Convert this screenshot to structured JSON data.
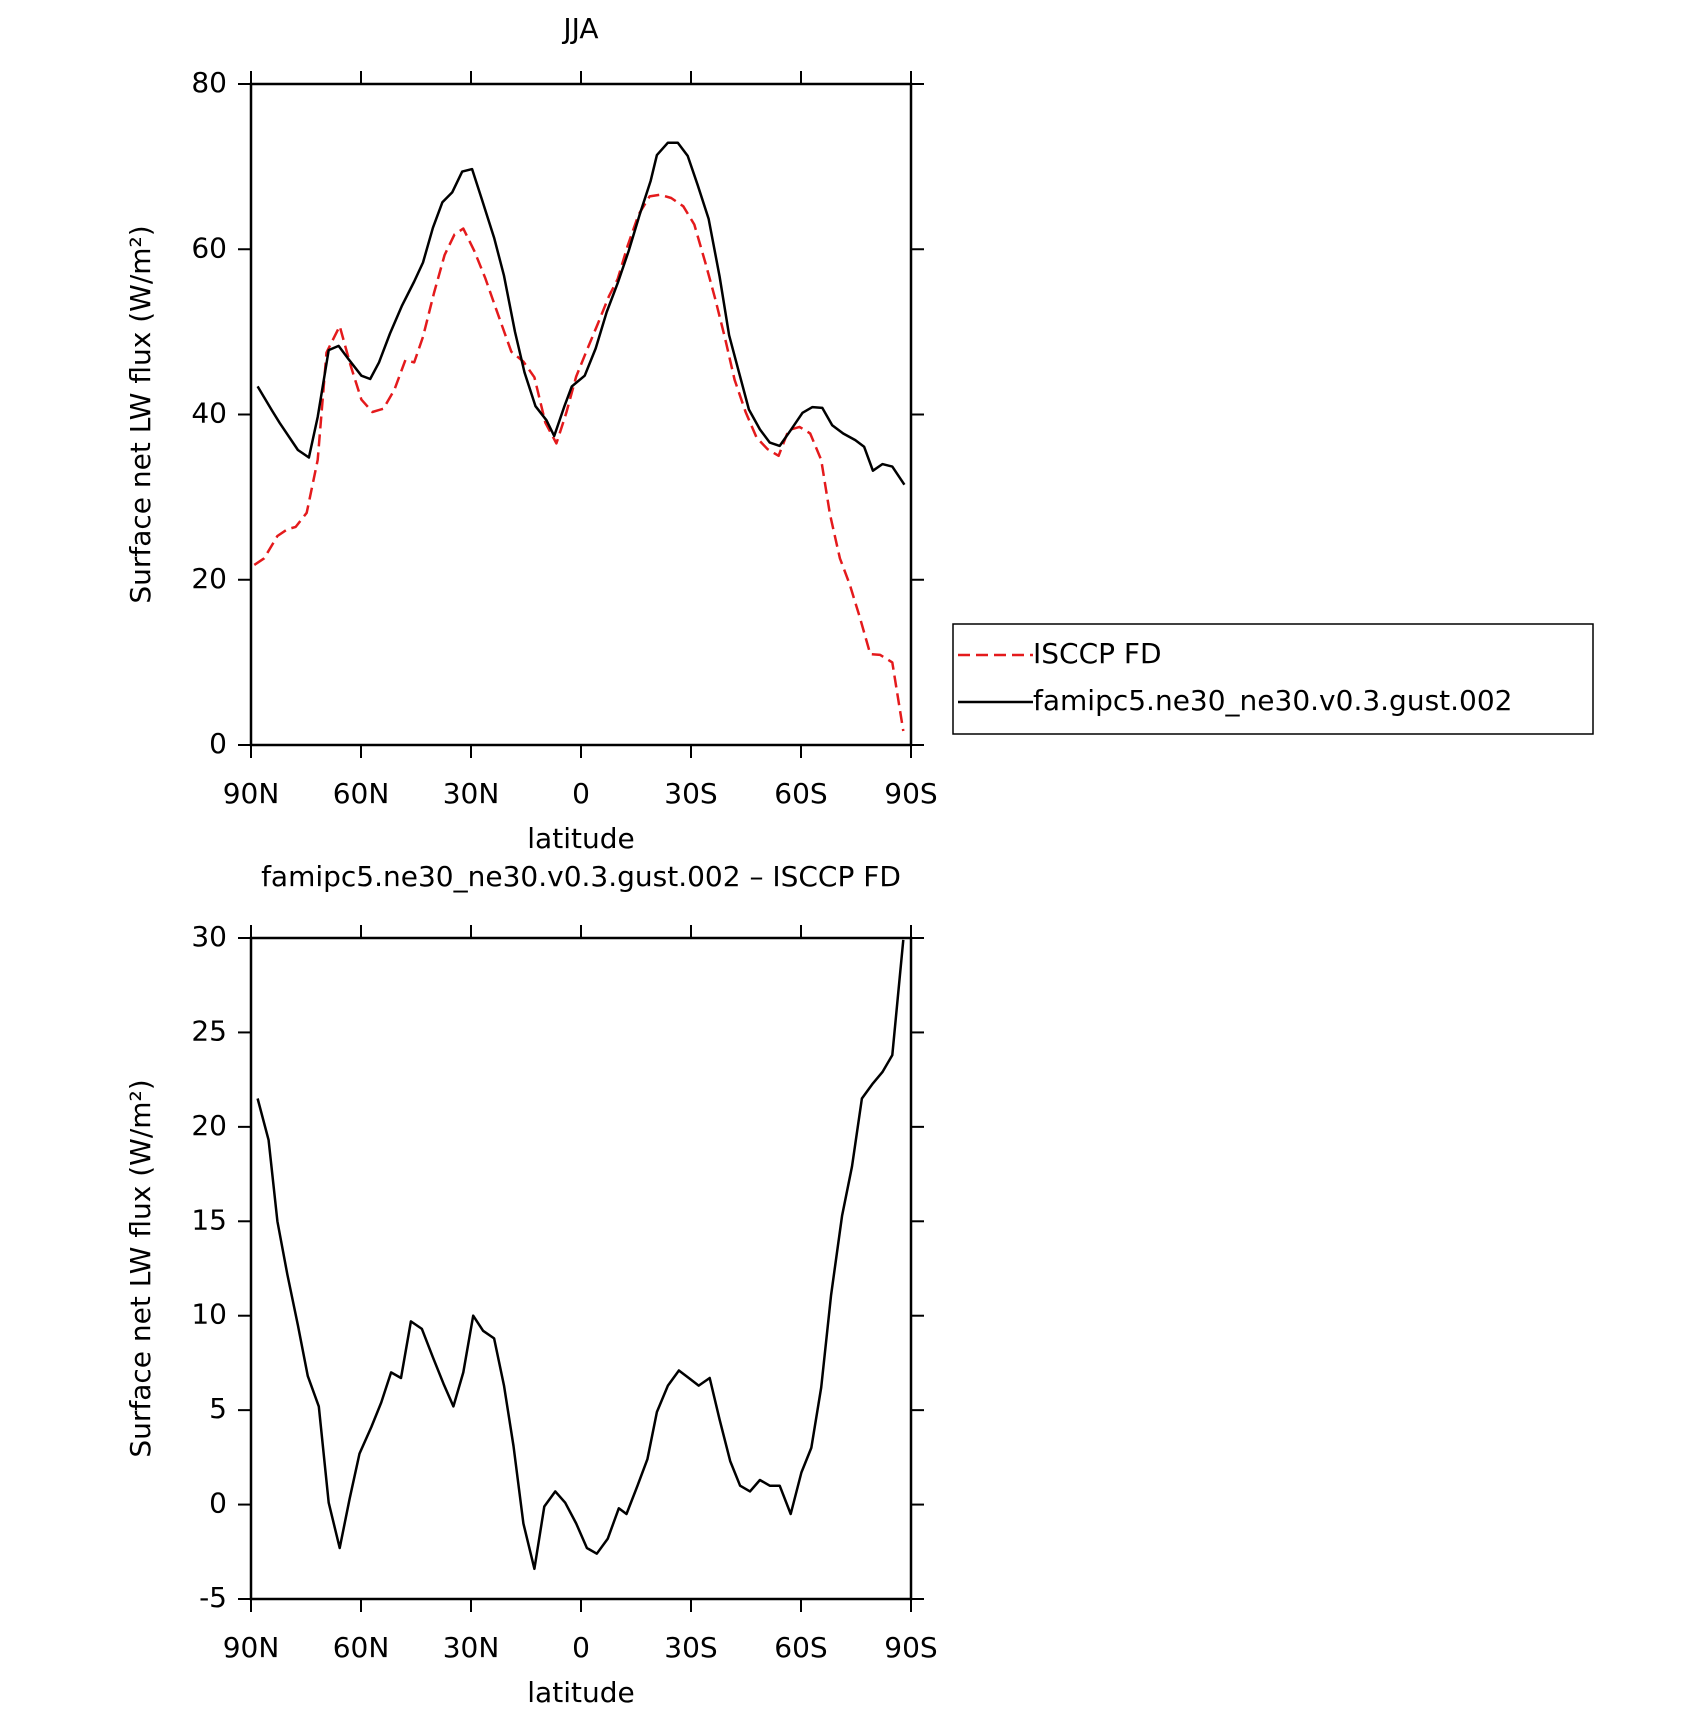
{
  "chart_data": [
    {
      "type": "line",
      "title": "JJA",
      "xlabel": "latitude",
      "ylabel": "Surface net LW flux (W/m²)",
      "xlim": [
        90,
        -90
      ],
      "xticks": [
        {
          "value": 90,
          "label": "90N"
        },
        {
          "value": 60,
          "label": "60N"
        },
        {
          "value": 30,
          "label": "30N"
        },
        0,
        {
          "value": -30,
          "label": "30S"
        },
        {
          "value": -60,
          "label": "60S"
        },
        {
          "value": -90,
          "label": "90S"
        }
      ],
      "ylim": [
        0,
        80
      ],
      "yticks": [
        0,
        20,
        40,
        60,
        80
      ],
      "legend": "outside right",
      "series": [
        {
          "name": "ISCCP FD",
          "color": "#e41a1c",
          "linestyle": "dashed",
          "x": [
            89.1,
            86.4,
            82.8,
            80.1,
            77.8,
            74.8,
            71.8,
            69.4,
            65.8,
            62.8,
            59.9,
            56.9,
            53.9,
            50.9,
            47.9,
            45.5,
            43.1,
            40.1,
            37.2,
            34.5,
            32.1,
            29.1,
            26.1,
            23.1,
            19,
            15.7,
            12.7,
            9.7,
            6.7,
            4,
            1.3,
            -1.6,
            -4.6,
            -7.6,
            -10,
            -12.7,
            -15.7,
            -18.7,
            -21.6,
            -24.6,
            -27.9,
            -30.9,
            -33.9,
            -36.6,
            -39.3,
            -41.9,
            -44.9,
            -47.9,
            -50.9,
            -53.9,
            -56.6,
            -59.6,
            -62.5,
            -65.5,
            -67.9,
            -70.6,
            -73.3,
            -76,
            -78.9,
            -81.6,
            -84.9,
            -87.9
          ],
          "values": [
            21.8,
            22.6,
            25.3,
            26.1,
            26.4,
            28.1,
            34.5,
            47.5,
            50.7,
            45.9,
            41.8,
            40.3,
            40.7,
            43,
            46.6,
            46.3,
            49.4,
            54.7,
            59.3,
            61.8,
            62.5,
            59.8,
            56.5,
            52.7,
            47.6,
            46.4,
            44.5,
            39,
            36.5,
            40.2,
            44.6,
            47.8,
            51,
            54.3,
            56.4,
            60.4,
            64.2,
            66.4,
            66.6,
            66.2,
            65.2,
            63,
            58.4,
            54,
            49.2,
            44.2,
            40.3,
            37.2,
            35.8,
            35,
            38.1,
            38.5,
            37.7,
            34.5,
            27.9,
            22.6,
            19.4,
            15.5,
            11,
            10.9,
            10,
            1.7
          ]
        },
        {
          "name": "famipc5.ne30_ne30.v0.3.gust.002",
          "color": "#000000",
          "linestyle": "solid",
          "x": [
            88.2,
            84.3,
            82.2,
            77.2,
            74.2,
            71.8,
            68.8,
            66.1,
            63.4,
            59.9,
            57.5,
            55.1,
            52.1,
            48.8,
            45.5,
            43.1,
            40.4,
            37.8,
            35.1,
            32.4,
            29.7,
            27,
            23.7,
            21,
            18,
            15.4,
            12.4,
            9.4,
            7.3,
            4.6,
            2.5,
            -1,
            -4,
            -7,
            -10,
            -13,
            -16,
            -19,
            -20.7,
            -23.7,
            -26.4,
            -29.1,
            -31.8,
            -34.8,
            -37.8,
            -40.4,
            -43.1,
            -45.8,
            -48.8,
            -51.5,
            -54.2,
            -57.2,
            -60.4,
            -63.1,
            -65.8,
            -68.5,
            -71.5,
            -74.8,
            -77.2,
            -79.6,
            -82.2,
            -84.9,
            -88.2
          ],
          "values": [
            43.4,
            40.5,
            39,
            35.7,
            34.8,
            39.7,
            47.8,
            48.3,
            46.7,
            44.7,
            44.3,
            46.3,
            49.8,
            53.2,
            56.1,
            58.4,
            62.6,
            65.7,
            66.9,
            69.4,
            69.7,
            66,
            61.4,
            56.8,
            50,
            45.1,
            41,
            39.3,
            37.4,
            40.9,
            43.4,
            44.7,
            48,
            52.4,
            55.9,
            59.8,
            64.2,
            68.3,
            71.4,
            72.9,
            72.9,
            71.3,
            67.8,
            63.7,
            56.7,
            49.6,
            45.1,
            40.6,
            38.2,
            36.6,
            36.2,
            38.1,
            40.2,
            40.9,
            40.8,
            38.7,
            37.7,
            36.9,
            36.1,
            33.2,
            34,
            33.7,
            31.5
          ]
        }
      ]
    },
    {
      "type": "line",
      "title": "famipc5.ne30_ne30.v0.3.gust.002 – ISCCP FD",
      "xlabel": "latitude",
      "ylabel": "Surface net LW flux (W/m²)",
      "xlim": [
        90,
        -90
      ],
      "xticks": [
        {
          "value": 90,
          "label": "90N"
        },
        {
          "value": 60,
          "label": "60N"
        },
        {
          "value": 30,
          "label": "30N"
        },
        0,
        {
          "value": -30,
          "label": "30S"
        },
        {
          "value": -60,
          "label": "60S"
        },
        {
          "value": -90,
          "label": "90S"
        }
      ],
      "ylim": [
        -5,
        30
      ],
      "yticks": [
        -5,
        0,
        5,
        10,
        15,
        20,
        25,
        30
      ],
      "series": [
        {
          "color": "#000000",
          "linestyle": "solid",
          "x": [
            88.2,
            85.2,
            82.8,
            80.1,
            77.2,
            74.5,
            71.5,
            68.8,
            65.8,
            63.1,
            60.4,
            57.2,
            54.5,
            51.8,
            49.1,
            46.4,
            43.4,
            40.4,
            37.5,
            34.8,
            32.1,
            29.4,
            26.7,
            23.7,
            21,
            18.4,
            15.7,
            12.7,
            10,
            7,
            4.3,
            1.3,
            -1.6,
            -4.3,
            -7.3,
            -10.3,
            -12.4,
            -15.4,
            -18.1,
            -20.7,
            -23.7,
            -26.7,
            -29.4,
            -32.1,
            -35.1,
            -37.8,
            -40.7,
            -43.4,
            -46.1,
            -48.8,
            -51.5,
            -54.2,
            -57.2,
            -60.1,
            -62.8,
            -65.5,
            -68.2,
            -71.2,
            -73.9,
            -76.6,
            -79.6,
            -82.2,
            -84.9,
            -87.9
          ],
          "values": [
            21.5,
            19.3,
            15,
            12.2,
            9.5,
            6.8,
            5.2,
            0.1,
            -2.3,
            0.3,
            2.7,
            4.1,
            5.4,
            7,
            6.7,
            9.7,
            9.3,
            7.8,
            6.4,
            5.2,
            7,
            10,
            9.2,
            8.8,
            6.3,
            3.1,
            -1,
            -3.4,
            -0.1,
            0.7,
            0.1,
            -1,
            -2.3,
            -2.6,
            -1.8,
            -0.2,
            -0.5,
            1,
            2.4,
            4.9,
            6.3,
            7.1,
            6.7,
            6.3,
            6.7,
            4.5,
            2.3,
            1,
            0.7,
            1.3,
            1,
            1,
            -0.5,
            1.7,
            3,
            6.2,
            11.1,
            15.3,
            17.9,
            21.5,
            22.3,
            22.9,
            23.8,
            29.9
          ]
        }
      ]
    }
  ]
}
